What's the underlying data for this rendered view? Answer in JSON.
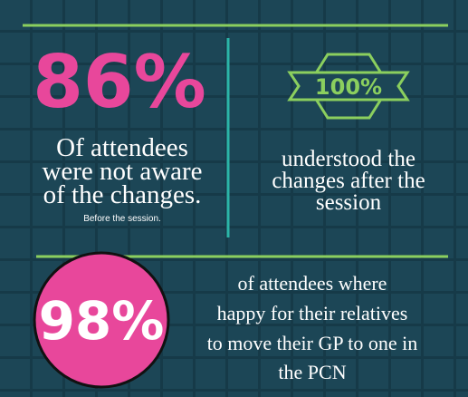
{
  "stats": [
    {
      "value": "86%",
      "lines": [
        "Of attendees",
        "were not aware",
        "of the changes."
      ],
      "note": "Before the session."
    },
    {
      "value": "100%",
      "lines": [
        "understood the",
        "changes after the",
        "session"
      ]
    },
    {
      "value": "98%",
      "lines": [
        "of attendees where",
        "happy for their relatives",
        "to move their GP to one in",
        "the PCN"
      ]
    }
  ]
}
